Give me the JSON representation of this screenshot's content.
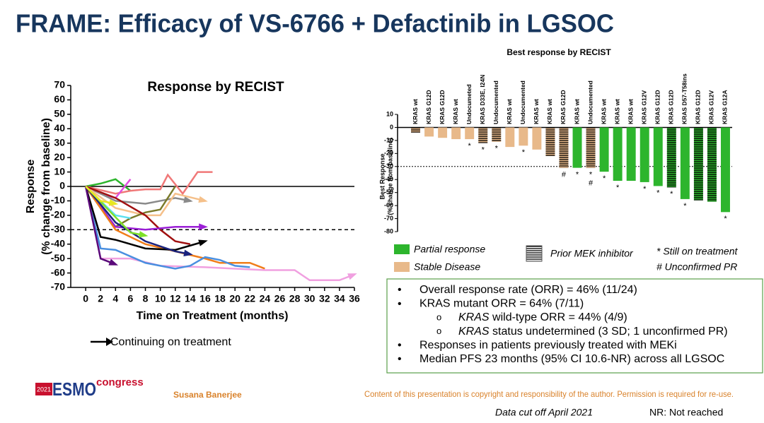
{
  "slide": {
    "title": "FRAME: Efficacy of VS-6766 + Defactinib in LGSOC",
    "bullets": [
      {
        "level": 1,
        "parts": [
          "Overall response rate (ORR) = 46% (11/24)"
        ]
      },
      {
        "level": 1,
        "parts": [
          "KRAS mutant ORR = 64% (7/11)"
        ]
      },
      {
        "level": 2,
        "parts": [
          "KRAS",
          " wild-type ORR = 44% (4/9)"
        ]
      },
      {
        "level": 2,
        "parts": [
          "KRAS",
          " status undetermined (3 SD; 1 unconfirmed PR)"
        ]
      },
      {
        "level": 1,
        "parts": [
          "Responses in patients previously treated with MEKi"
        ]
      },
      {
        "level": 1,
        "parts": [
          "Median PFS 23 months (95% CI 10.6-NR) across all LGSOC"
        ]
      }
    ],
    "bullet_symbols": {
      "1": "•",
      "2": "o"
    },
    "logo": {
      "year": "2021",
      "name": "ESMO",
      "suffix": "congress"
    },
    "author": "Susana Banerjee",
    "copyright": "Content of this presentation is copyright and responsibility of the author. Permission is required for re-use.",
    "data_cut": "Data cut off April 2021",
    "abbreviation": "NR: Not reached"
  },
  "chart_data": [
    {
      "type": "line",
      "title": "Response by RECIST",
      "xlabel": "Time on Treatment (months)",
      "ylabel": [
        "Response",
        "(% change from baseline)"
      ],
      "xlim": [
        -2,
        36
      ],
      "ylim": [
        -70,
        70
      ],
      "xticks": [
        0,
        2,
        4,
        6,
        8,
        10,
        12,
        14,
        16,
        18,
        20,
        22,
        24,
        26,
        28,
        30,
        32,
        34,
        36
      ],
      "yticks": [
        -70,
        -60,
        -50,
        -40,
        -30,
        -20,
        -10,
        0,
        10,
        20,
        30,
        40,
        50,
        60,
        70
      ],
      "hlines": [
        {
          "value": 0,
          "style": "solid"
        },
        {
          "value": -30,
          "style": "dashed"
        }
      ],
      "arrow_legend": "Continuing on treatment",
      "series": [
        {
          "color": "#2db52d",
          "x": [
            0,
            2,
            4,
            6
          ],
          "values": [
            0,
            2,
            5,
            -3
          ],
          "arrow": false
        },
        {
          "color": "#f07878",
          "x": [
            0,
            4,
            6,
            8,
            10,
            11,
            13,
            15,
            17
          ],
          "values": [
            0,
            -5,
            -3,
            -2,
            -2,
            8,
            -5,
            10,
            10
          ],
          "arrow": false
        },
        {
          "color": "#e050e0",
          "x": [
            0,
            2,
            4,
            6
          ],
          "values": [
            0,
            -5,
            -8,
            5
          ],
          "arrow": false
        },
        {
          "color": "#8a8a8a",
          "x": [
            0,
            4,
            8,
            10,
            12,
            14
          ],
          "values": [
            0,
            -10,
            -12,
            -10,
            -8,
            -10
          ],
          "arrow": true
        },
        {
          "color": "#f5c08a",
          "x": [
            0,
            4,
            8,
            10,
            12,
            16
          ],
          "values": [
            0,
            -15,
            -20,
            -20,
            -5,
            -10
          ],
          "arrow": true
        },
        {
          "color": "#7a7a2a",
          "x": [
            0,
            2,
            4,
            6,
            8,
            10,
            12
          ],
          "values": [
            0,
            -15,
            -28,
            -22,
            -18,
            -16,
            0
          ],
          "arrow": false
        },
        {
          "color": "#a01010",
          "x": [
            0,
            4,
            8,
            10,
            12,
            14
          ],
          "values": [
            0,
            -8,
            -20,
            -30,
            -38,
            -40
          ],
          "arrow": false
        },
        {
          "color": "#9b1fd6",
          "x": [
            0,
            4,
            8,
            12,
            16
          ],
          "values": [
            0,
            -28,
            -30,
            -28,
            -28
          ],
          "arrow": true
        },
        {
          "color": "#f07d1a",
          "x": [
            0,
            4,
            8,
            12,
            16,
            18,
            22,
            24
          ],
          "values": [
            0,
            -30,
            -40,
            -45,
            -50,
            -53,
            -53,
            -57
          ],
          "arrow": false
        },
        {
          "color": "#f0a0e0",
          "x": [
            0,
            2,
            6,
            10,
            16,
            20,
            24,
            28,
            30,
            34,
            36
          ],
          "values": [
            0,
            -50,
            -50,
            -55,
            -56,
            -57,
            -58,
            -58,
            -65,
            -65,
            -61
          ],
          "arrow": true
        },
        {
          "color": "#4a8fe0",
          "x": [
            0,
            2,
            4,
            8,
            12,
            14,
            16,
            18,
            20,
            22
          ],
          "values": [
            0,
            -43,
            -44,
            -53,
            -57,
            -55,
            -49,
            -51,
            -55,
            -56
          ],
          "arrow": false
        },
        {
          "color": "#000000",
          "x": [
            0,
            2,
            4,
            8,
            12,
            16
          ],
          "values": [
            0,
            -35,
            -37,
            -43,
            -44,
            -38
          ],
          "arrow": true
        },
        {
          "color": "#1a237e",
          "x": [
            0,
            4,
            8,
            12,
            14
          ],
          "values": [
            0,
            -25,
            -38,
            -45,
            -47
          ],
          "arrow": true
        },
        {
          "color": "#5a0a7a",
          "x": [
            0,
            2,
            4
          ],
          "values": [
            0,
            -50,
            -54
          ],
          "arrow": true
        },
        {
          "color": "#5ce0f0",
          "x": [
            0,
            4,
            6
          ],
          "values": [
            0,
            -20,
            -22
          ],
          "arrow": false
        },
        {
          "color": "#7fe02a",
          "x": [
            0,
            6,
            8
          ],
          "values": [
            0,
            -32,
            -34
          ],
          "arrow": true
        },
        {
          "color": "#e8e820",
          "x": [
            0,
            2,
            4
          ],
          "values": [
            0,
            -10,
            -12
          ],
          "arrow": true
        }
      ]
    },
    {
      "type": "waterfall",
      "title": "Best response by RECIST",
      "ylabel": [
        "Best  Response",
        "(% change from baseline)"
      ],
      "ylim": [
        -80,
        10
      ],
      "yticks": [
        -80,
        -70,
        -60,
        -50,
        -40,
        -30,
        -20,
        -10,
        0,
        10
      ],
      "threshold": -30,
      "categories": [
        "KRAS wt",
        "KRAS G12D",
        "KRAS G12D",
        "KRAS wt",
        "Undocumeted",
        "KRAS D33E, I24N",
        "Undocumented",
        "KRAS wt",
        "Undocumented",
        "KRAS wt",
        "KRAS wt",
        "KRAS G12D",
        "KRAS wt",
        "Undocumented",
        "KRAS wt",
        "KRAS wt",
        "KRAS wt",
        "KRAS G12V",
        "KRAS G12D",
        "KRAS G12D",
        "KRAS D57-T58ins",
        "KRAS G12D",
        "KRAS G12V",
        "KRAS G12A"
      ],
      "values": [
        -4,
        -7,
        -8,
        -9,
        -9,
        -12,
        -11,
        -15,
        -14,
        -17,
        -22,
        -31,
        -31,
        -31,
        -34,
        -41,
        -41,
        -42,
        -45,
        -46,
        -55,
        -56,
        -57,
        -65
      ],
      "colors": [
        "#e8b98a",
        "#e8b98a",
        "#e8b98a",
        "#e8b98a",
        "#e8b98a",
        "#e8b98a",
        "#e8b98a",
        "#e8b98a",
        "#e8b98a",
        "#e8b98a",
        "#e8b98a",
        "#e8b98a",
        "#2db52d",
        "#e8b98a",
        "#2db52d",
        "#2db52d",
        "#2db52d",
        "#2db52d",
        "#2db52d",
        "#2db52d",
        "#2db52d",
        "#2db52d",
        "#2db52d",
        "#2db52d"
      ],
      "hatched": [
        true,
        false,
        false,
        false,
        false,
        true,
        true,
        false,
        false,
        false,
        true,
        true,
        false,
        true,
        false,
        false,
        false,
        false,
        false,
        true,
        false,
        true,
        true,
        false
      ],
      "annotations": [
        null,
        null,
        null,
        null,
        [
          "*"
        ],
        [
          "*"
        ],
        [
          "*"
        ],
        null,
        [
          "*"
        ],
        null,
        null,
        [
          "#"
        ],
        [
          "*"
        ],
        [
          "*",
          "#"
        ],
        [
          "*"
        ],
        [
          "*"
        ],
        null,
        [
          "*"
        ],
        [
          "*"
        ],
        [
          "*"
        ],
        [
          "*"
        ],
        null,
        null,
        [
          "*"
        ]
      ],
      "legend": [
        {
          "name": "Partial response",
          "color": "#2db52d"
        },
        {
          "name": "Stable Disease",
          "color": "#e8b98a"
        }
      ],
      "hatch_legend": "Prior MEK inhibitor",
      "notes": [
        "* Still on treatment",
        "# Unconfirmed PR"
      ]
    }
  ]
}
